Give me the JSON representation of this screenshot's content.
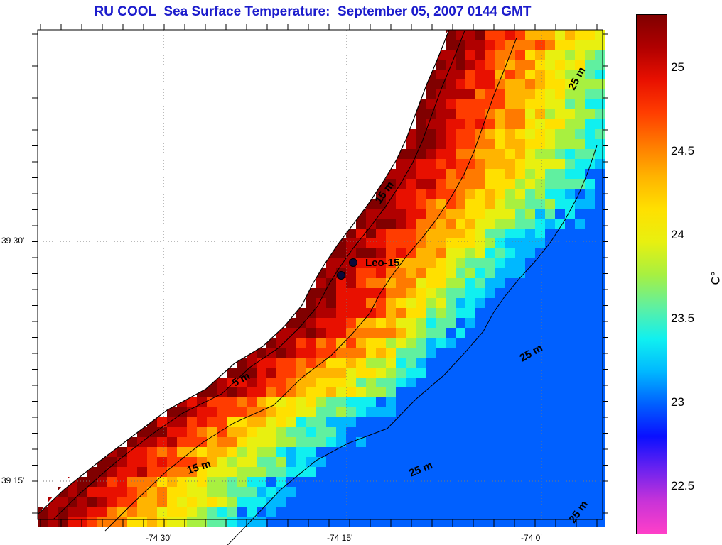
{
  "title": "RU COOL  Sea Surface Temperature:  September 05, 2007 0144 GMT",
  "map": {
    "lon_ticks": [
      "-74 30'",
      "-74 15'",
      "-74 0'"
    ],
    "lat_ticks": [
      "39 30'",
      "39 15'"
    ],
    "station_label": "Leo-15",
    "depth_labels": [
      "5 m",
      "15 m",
      "15 m",
      "25 m",
      "25 m",
      "25 m",
      "25 m"
    ]
  },
  "colorbar": {
    "unit": "C°",
    "min": 22.2,
    "max": 25.3,
    "tick_labels": [
      "22.5",
      "23",
      "23.5",
      "24",
      "24.5",
      "25"
    ],
    "colors": [
      "#ff3fc8",
      "#c833d8",
      "#6a22f0",
      "#0a10ff",
      "#0060ff",
      "#00b8ff",
      "#10f0f0",
      "#60f0a0",
      "#a8f040",
      "#e8f010",
      "#ffe000",
      "#ffb400",
      "#ff7a00",
      "#ff3c00",
      "#e81000",
      "#b00000",
      "#800000"
    ]
  }
}
